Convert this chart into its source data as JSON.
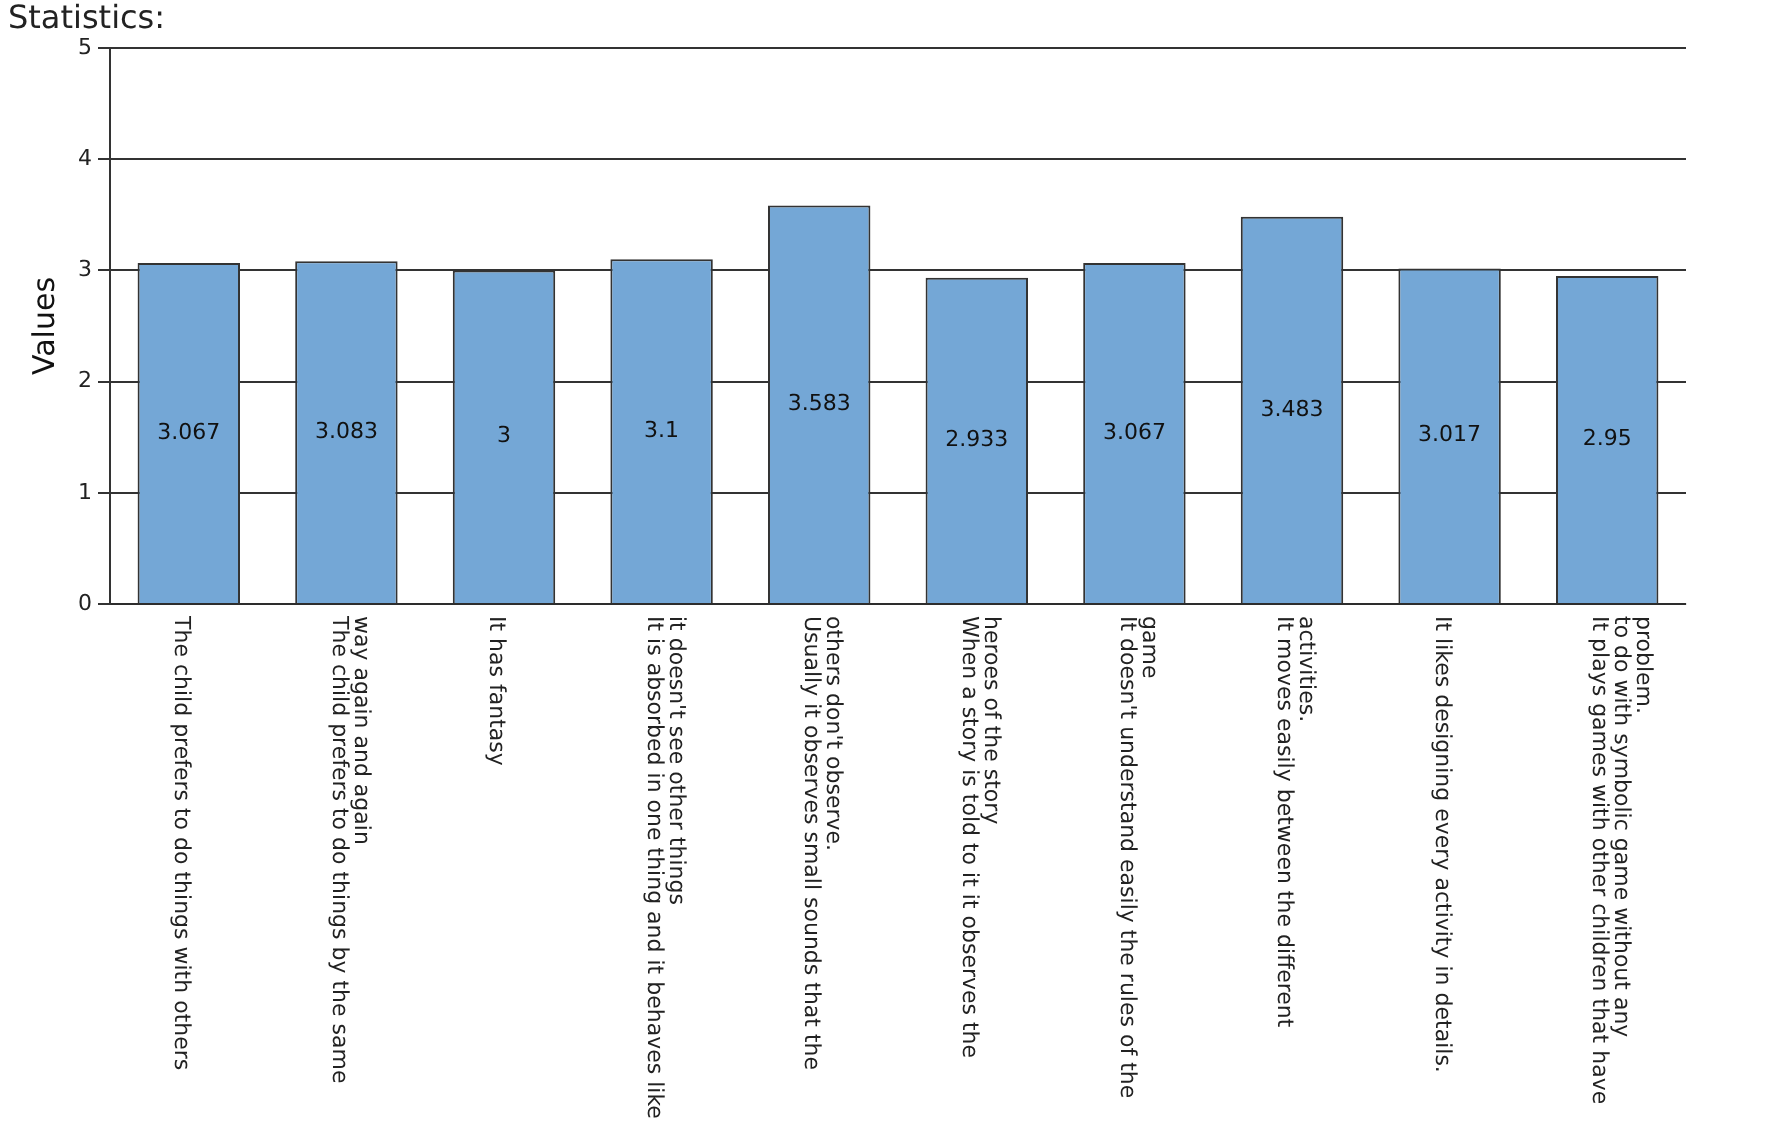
{
  "chart_data": {
    "type": "bar",
    "title": "Statistics:",
    "ylabel": "Values",
    "categories": [
      "The child prefers to do things with others",
      "The child prefers to do things by the same way again and again",
      "It has fantasy",
      "It is absorbed in one thing and it behaves like it doesn't see other things",
      "Usually it observes small sounds that the others don't observe.",
      "When a story is told to it it observes the heroes of the story",
      "It doesn't understand easily the rules of the game",
      "It moves easily between the different activities.",
      "It likes designing every activity in details.",
      "It plays games with other children that have to do with symbolic game without any problem."
    ],
    "values": [
      3.067,
      3.083,
      3,
      3.1,
      3.583,
      2.933,
      3.067,
      3.483,
      3.017,
      2.95
    ],
    "color": "#74a7d6",
    "ylim": [
      0,
      5
    ],
    "yticks": [
      0,
      1,
      2,
      3,
      4,
      5
    ],
    "grid": "y",
    "data_labels": true,
    "legend": false
  }
}
